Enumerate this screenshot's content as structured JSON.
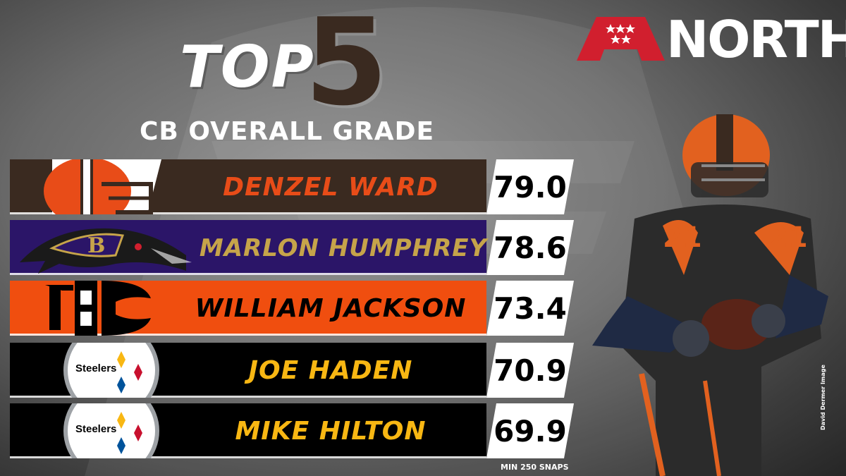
{
  "header": {
    "title_word": "TOP",
    "title_number": "5",
    "subtitle": "CB OVERALL GRADE",
    "conference_logo": "afc-shield-logo",
    "division": "NORTH"
  },
  "colors": {
    "browns_brown": "#3a2a20",
    "browns_orange": "#e84c18",
    "ravens_purple": "#2b1568",
    "ravens_gold": "#c6a44a",
    "bengals_orange": "#f04e0f",
    "steelers_black": "#000000",
    "steelers_gold": "#f8b713"
  },
  "rankings": [
    {
      "team_logo": "browns-helmet-logo",
      "name": "DENZEL WARD",
      "grade": "79.0"
    },
    {
      "team_logo": "ravens-logo",
      "name": "MARLON HUMPHREY",
      "grade": "78.6"
    },
    {
      "team_logo": "bengals-logo",
      "name": "WILLIAM JACKSON",
      "grade": "73.4"
    },
    {
      "team_logo": "steelers-logo",
      "steelers_logo_text": "Steelers",
      "name": "JOE HADEN",
      "grade": "70.9"
    },
    {
      "team_logo": "steelers-logo",
      "steelers_logo_text": "Steelers",
      "name": "MIKE HILTON",
      "grade": "69.9"
    }
  ],
  "footnote": "MIN 250 SNAPS",
  "photo_credit": "David Dermer Image"
}
